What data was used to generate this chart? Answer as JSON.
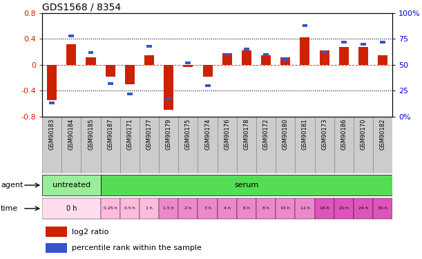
{
  "title": "GDS1568 / 8354",
  "samples": [
    "GSM90183",
    "GSM90184",
    "GSM90185",
    "GSM90187",
    "GSM90171",
    "GSM90177",
    "GSM90179",
    "GSM90175",
    "GSM90174",
    "GSM90176",
    "GSM90178",
    "GSM90172",
    "GSM90180",
    "GSM90181",
    "GSM90173",
    "GSM90186",
    "GSM90170",
    "GSM90182"
  ],
  "log2_ratio": [
    -0.55,
    0.32,
    0.12,
    -0.18,
    -0.3,
    0.15,
    -0.7,
    -0.03,
    -0.18,
    0.18,
    0.22,
    0.15,
    0.12,
    0.42,
    0.22,
    0.28,
    0.28,
    0.15
  ],
  "percentile": [
    13,
    78,
    62,
    32,
    22,
    68,
    17,
    52,
    30,
    60,
    65,
    60,
    55,
    88,
    62,
    72,
    70,
    72
  ],
  "bar_color_red": "#cc2200",
  "bar_color_blue": "#3355cc",
  "ylim_left": [
    -0.8,
    0.8
  ],
  "ylim_right": [
    0,
    100
  ],
  "yticks_left": [
    -0.8,
    -0.4,
    0.0,
    0.4,
    0.8
  ],
  "yticks_right": [
    0,
    25,
    50,
    75,
    100
  ],
  "ytick_labels_left": [
    "-0.8",
    "-0.4",
    "0",
    "0.4",
    "0.8"
  ],
  "ytick_labels_right": [
    "0%",
    "25",
    "50",
    "75",
    "100%"
  ],
  "hline_dotted": [
    0.4,
    -0.4
  ],
  "hline_dash": 0.0,
  "agent_labels": [
    {
      "text": "untreated",
      "start": 0,
      "end": 3,
      "color": "#99ee99"
    },
    {
      "text": "serum",
      "start": 3,
      "end": 18,
      "color": "#55dd55"
    }
  ],
  "time_labels": [
    {
      "text": "0 h",
      "start": 0,
      "end": 3,
      "color": "#ffddee"
    },
    {
      "text": "0.25 h",
      "start": 3,
      "end": 4,
      "color": "#ffbbdd"
    },
    {
      "text": "0.5 h",
      "start": 4,
      "end": 5,
      "color": "#ffbbdd"
    },
    {
      "text": "1 h",
      "start": 5,
      "end": 6,
      "color": "#ffbbdd"
    },
    {
      "text": "1.5 h",
      "start": 6,
      "end": 7,
      "color": "#ee88cc"
    },
    {
      "text": "2 h",
      "start": 7,
      "end": 8,
      "color": "#ee88cc"
    },
    {
      "text": "3 h",
      "start": 8,
      "end": 9,
      "color": "#ee88cc"
    },
    {
      "text": "4 h",
      "start": 9,
      "end": 10,
      "color": "#ee88cc"
    },
    {
      "text": "6 h",
      "start": 10,
      "end": 11,
      "color": "#ee88cc"
    },
    {
      "text": "8 h",
      "start": 11,
      "end": 12,
      "color": "#ee88cc"
    },
    {
      "text": "10 h",
      "start": 12,
      "end": 13,
      "color": "#ee88cc"
    },
    {
      "text": "12 h",
      "start": 13,
      "end": 14,
      "color": "#ee88cc"
    },
    {
      "text": "16 h",
      "start": 14,
      "end": 15,
      "color": "#dd55bb"
    },
    {
      "text": "20 h",
      "start": 15,
      "end": 16,
      "color": "#dd55bb"
    },
    {
      "text": "24 h",
      "start": 16,
      "end": 17,
      "color": "#dd55bb"
    },
    {
      "text": "36 h",
      "start": 17,
      "end": 18,
      "color": "#dd55bb"
    }
  ],
  "sample_box_color": "#cccccc",
  "sample_box_edge": "#888888",
  "legend_red": "log2 ratio",
  "legend_blue": "percentile rank within the sample",
  "background_color": "#ffffff",
  "left_tick_color": "#cc2200",
  "right_tick_color": "#0000cc"
}
